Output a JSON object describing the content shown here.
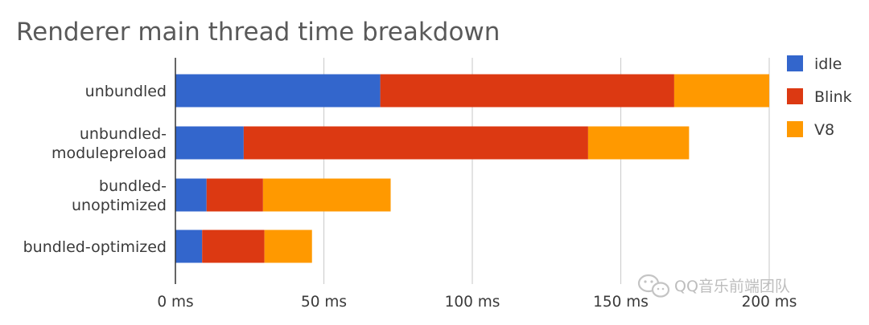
{
  "chart_data": {
    "type": "bar",
    "orientation": "horizontal",
    "stacked": true,
    "title": "Renderer main thread time breakdown",
    "xlabel": "",
    "ylabel": "",
    "categories": [
      [
        "unbundled"
      ],
      [
        "unbundled-",
        "modulepreload"
      ],
      [
        "bundled-",
        "unoptimized"
      ],
      [
        "bundled-optimized"
      ]
    ],
    "series": [
      {
        "name": "idle",
        "color": "#3366cc",
        "values": [
          69,
          23,
          10.5,
          9
        ]
      },
      {
        "name": "Blink",
        "color": "#dc3912",
        "values": [
          99,
          116,
          19,
          21
        ]
      },
      {
        "name": "V8",
        "color": "#ff9900",
        "values": [
          32,
          34,
          43,
          16
        ]
      }
    ],
    "xlim": [
      0,
      200
    ],
    "xticks": [
      0,
      50,
      100,
      150,
      200
    ],
    "xtick_labels": [
      "0 ms",
      "50 ms",
      "100 ms",
      "150 ms",
      "200 ms"
    ],
    "grid": true,
    "legend_position": "right"
  },
  "watermark": {
    "text": "QQ音乐前端团队",
    "icon": "wechat-logo-icon"
  }
}
